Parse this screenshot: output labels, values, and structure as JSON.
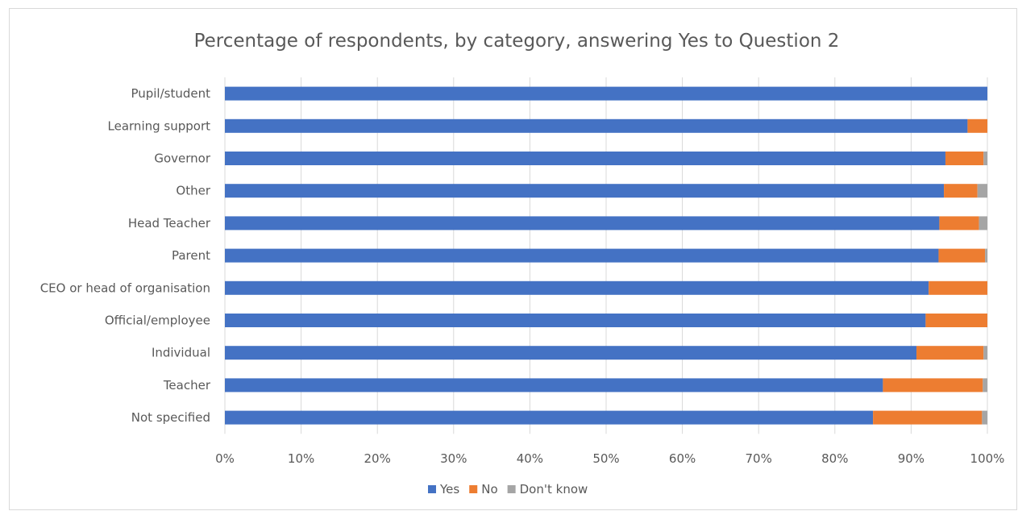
{
  "chart_data": {
    "type": "bar",
    "orientation": "horizontal",
    "stacked": "percent",
    "title": "Percentage of respondents, by category, answering Yes to Question 2",
    "categories": [
      "Pupil/student",
      "Learning support",
      "Governor",
      "Other",
      "Head Teacher",
      "Parent",
      "CEO or head of organisation",
      "Official/employee",
      "Individual",
      "Teacher",
      "Not specified"
    ],
    "series": [
      {
        "name": "Yes",
        "color": "#4472C4",
        "values": [
          100,
          97.4,
          94.5,
          94.3,
          93.7,
          93.6,
          92.3,
          91.9,
          90.7,
          86.3,
          85.0
        ]
      },
      {
        "name": "No",
        "color": "#ED7D31",
        "values": [
          0,
          2.6,
          5.0,
          4.4,
          5.2,
          6.1,
          7.7,
          8.1,
          8.8,
          13.1,
          14.3
        ]
      },
      {
        "name": "Don't know",
        "color": "#A5A5A5",
        "values": [
          0,
          0,
          0.5,
          1.3,
          1.1,
          0.3,
          0,
          0,
          0.5,
          0.6,
          0.7
        ]
      }
    ],
    "xlim": [
      0,
      100
    ],
    "xticks": [
      "0%",
      "10%",
      "20%",
      "30%",
      "40%",
      "50%",
      "60%",
      "70%",
      "80%",
      "90%",
      "100%"
    ],
    "grid": true,
    "legend_position": "bottom"
  }
}
